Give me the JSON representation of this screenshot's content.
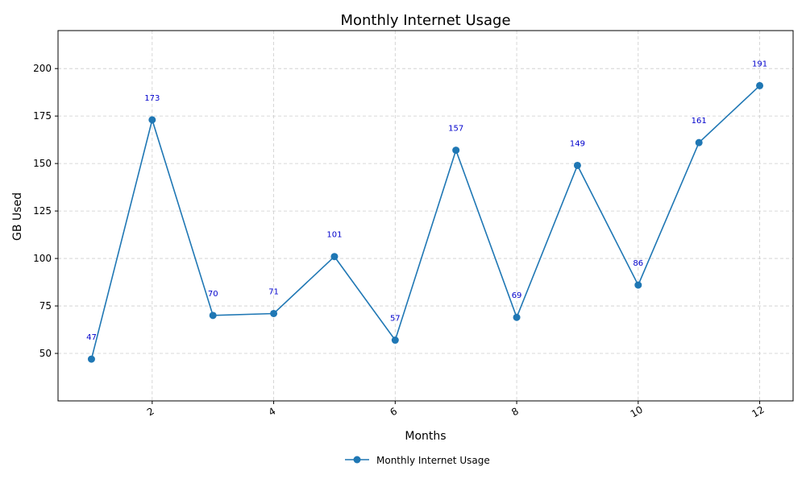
{
  "chart_data": {
    "type": "line",
    "title": "Monthly Internet Usage",
    "xlabel": "Months",
    "ylabel": "GB Used",
    "xlim": [
      0.45,
      12.55
    ],
    "ylim": [
      25,
      220
    ],
    "xticks": [
      2,
      4,
      6,
      8,
      10,
      12
    ],
    "yticks": [
      50,
      75,
      100,
      125,
      150,
      175,
      200
    ],
    "grid": true,
    "legend_position": "bottom-center",
    "series": [
      {
        "name": "Monthly Internet Usage",
        "color": "#1f77b4",
        "marker": "circle",
        "x": [
          1,
          2,
          3,
          4,
          5,
          6,
          7,
          8,
          9,
          10,
          11,
          12
        ],
        "y": [
          47,
          173,
          70,
          71,
          101,
          57,
          157,
          69,
          149,
          86,
          161,
          191
        ]
      }
    ],
    "data_label_color": "#0000cc"
  }
}
